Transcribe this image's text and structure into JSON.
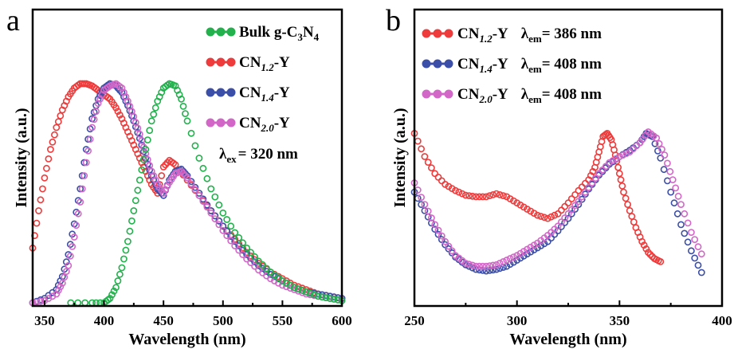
{
  "colors": {
    "green": "#22b14c",
    "red": "#ee3b3b",
    "blue": "#3c4fa8",
    "magenta": "#d267c8"
  },
  "chart_data": [
    {
      "panel": "a",
      "type": "scatter",
      "xlabel": "Wavelength (nm)",
      "ylabel": "Intensity (a.u.)",
      "xlim": [
        340,
        600
      ],
      "ylim": [
        0,
        1.08
      ],
      "xticks": [
        350,
        400,
        450,
        500,
        550,
        600
      ],
      "legend_position": "top-right",
      "annotation": {
        "symbol": "λ",
        "sub": "ex",
        "value": "= 320 nm"
      },
      "series": [
        {
          "name": "Bulk g-C3N4",
          "label_main": "Bulk g-C",
          "label_sub1": "3",
          "label_mid": "N",
          "label_sub2": "4",
          "color": "#22b14c",
          "x": [
            372,
            390,
            400,
            405,
            410,
            415,
            420,
            425,
            430,
            435,
            440,
            445,
            450,
            455,
            460,
            465,
            470,
            480,
            490,
            500,
            510,
            520,
            530,
            540,
            550,
            560,
            570,
            580,
            590,
            600
          ],
          "y": [
            0.0,
            0.0,
            0.0,
            0.02,
            0.07,
            0.16,
            0.28,
            0.42,
            0.56,
            0.7,
            0.83,
            0.92,
            0.98,
            1.0,
            0.99,
            0.93,
            0.83,
            0.66,
            0.52,
            0.41,
            0.32,
            0.25,
            0.19,
            0.14,
            0.1,
            0.07,
            0.05,
            0.03,
            0.02,
            0.01
          ]
        },
        {
          "name": "CN1.2-Y",
          "label_main": "CN",
          "label_sub": "1.2",
          "label_tail": "-Y",
          "color": "#ee3b3b",
          "x": [
            340,
            345,
            350,
            355,
            360,
            365,
            370,
            375,
            380,
            385,
            390,
            395,
            400,
            405,
            410,
            415,
            420,
            425,
            430,
            435,
            440,
            445,
            450,
            455,
            460,
            470,
            480,
            490,
            500,
            510,
            520,
            530,
            540,
            550,
            560,
            570,
            580,
            590,
            600
          ],
          "y": [
            0.25,
            0.42,
            0.57,
            0.7,
            0.8,
            0.88,
            0.94,
            0.98,
            1.0,
            1.0,
            0.99,
            0.97,
            0.95,
            0.93,
            0.89,
            0.84,
            0.78,
            0.72,
            0.66,
            0.6,
            0.54,
            0.5,
            0.62,
            0.65,
            0.63,
            0.56,
            0.49,
            0.42,
            0.35,
            0.29,
            0.23,
            0.18,
            0.14,
            0.11,
            0.08,
            0.06,
            0.04,
            0.03,
            0.02
          ]
        },
        {
          "name": "CN1.4-Y",
          "label_main": "CN",
          "label_sub": "1.4",
          "label_tail": "-Y",
          "color": "#3c4fa8",
          "x": [
            340,
            350,
            360,
            365,
            370,
            375,
            380,
            385,
            390,
            395,
            400,
            405,
            410,
            415,
            420,
            425,
            430,
            435,
            440,
            445,
            450,
            455,
            460,
            465,
            470,
            480,
            490,
            500,
            510,
            520,
            530,
            540,
            550,
            560,
            570,
            580,
            590,
            600
          ],
          "y": [
            0.0,
            0.02,
            0.06,
            0.12,
            0.22,
            0.36,
            0.52,
            0.7,
            0.84,
            0.93,
            0.98,
            1.0,
            0.99,
            0.96,
            0.9,
            0.83,
            0.75,
            0.66,
            0.58,
            0.52,
            0.49,
            0.56,
            0.6,
            0.61,
            0.58,
            0.5,
            0.42,
            0.35,
            0.28,
            0.22,
            0.17,
            0.13,
            0.1,
            0.07,
            0.05,
            0.04,
            0.03,
            0.02
          ]
        },
        {
          "name": "CN2.0-Y",
          "label_main": "CN",
          "label_sub": "2.0",
          "label_tail": "-Y",
          "color": "#d267c8",
          "x": [
            340,
            350,
            360,
            365,
            370,
            375,
            380,
            385,
            390,
            395,
            400,
            405,
            410,
            415,
            420,
            425,
            430,
            435,
            440,
            445,
            450,
            455,
            460,
            465,
            470,
            480,
            490,
            500,
            510,
            520,
            530,
            540,
            550,
            560,
            570,
            580,
            590,
            600
          ],
          "y": [
            0.0,
            0.01,
            0.04,
            0.09,
            0.17,
            0.3,
            0.46,
            0.64,
            0.8,
            0.91,
            0.97,
            0.99,
            1.0,
            0.98,
            0.92,
            0.85,
            0.77,
            0.68,
            0.6,
            0.54,
            0.5,
            0.55,
            0.59,
            0.6,
            0.57,
            0.49,
            0.41,
            0.33,
            0.26,
            0.2,
            0.15,
            0.11,
            0.08,
            0.06,
            0.04,
            0.03,
            0.02,
            0.01
          ]
        }
      ]
    },
    {
      "panel": "b",
      "type": "scatter",
      "xlabel": "Wavelength (nm)",
      "ylabel": "Intensity (a.u.)",
      "xlim": [
        250,
        400
      ],
      "ylim": [
        0,
        1.08
      ],
      "xticks": [
        250,
        300,
        350,
        400
      ],
      "legend_position": "top-left",
      "series": [
        {
          "name": "CN1.2-Y λem = 386 nm",
          "label_main": "CN",
          "label_sub": "1.2",
          "label_tail": "-Y",
          "em_value": "= 386 nm",
          "color": "#ee3b3b",
          "x": [
            250,
            255,
            260,
            265,
            270,
            275,
            280,
            285,
            290,
            295,
            300,
            305,
            310,
            315,
            320,
            325,
            330,
            335,
            338,
            340,
            342,
            344,
            346,
            348,
            350,
            352,
            355,
            358,
            361,
            364,
            367,
            370
          ],
          "y": [
            0.9,
            0.75,
            0.64,
            0.57,
            0.53,
            0.5,
            0.49,
            0.49,
            0.51,
            0.49,
            0.45,
            0.41,
            0.37,
            0.35,
            0.38,
            0.45,
            0.53,
            0.6,
            0.68,
            0.78,
            0.88,
            0.9,
            0.86,
            0.76,
            0.64,
            0.52,
            0.4,
            0.29,
            0.2,
            0.13,
            0.09,
            0.07
          ]
        },
        {
          "name": "CN1.4-Y λem = 408 nm",
          "label_main": "CN",
          "label_sub": "1.4",
          "label_tail": "-Y",
          "em_value": "= 408 nm",
          "color": "#3c4fa8",
          "x": [
            250,
            255,
            260,
            265,
            270,
            275,
            280,
            285,
            290,
            295,
            300,
            305,
            310,
            315,
            320,
            325,
            330,
            335,
            340,
            345,
            350,
            355,
            360,
            363,
            366,
            370,
            375,
            380,
            385,
            390
          ],
          "y": [
            0.52,
            0.4,
            0.28,
            0.18,
            0.1,
            0.05,
            0.02,
            0.01,
            0.02,
            0.04,
            0.08,
            0.12,
            0.16,
            0.2,
            0.27,
            0.35,
            0.44,
            0.54,
            0.63,
            0.7,
            0.75,
            0.79,
            0.84,
            0.9,
            0.88,
            0.74,
            0.52,
            0.31,
            0.14,
            0.0
          ]
        },
        {
          "name": "CN2.0-Y λem = 408 nm",
          "label_main": "CN",
          "label_sub": "2.0",
          "label_tail": "-Y",
          "em_value": "= 408 nm",
          "color": "#d267c8",
          "x": [
            250,
            255,
            260,
            265,
            270,
            275,
            280,
            285,
            290,
            295,
            300,
            305,
            310,
            315,
            320,
            325,
            330,
            335,
            340,
            345,
            350,
            355,
            360,
            364,
            368,
            372,
            376,
            380,
            385,
            390
          ],
          "y": [
            0.58,
            0.44,
            0.31,
            0.2,
            0.11,
            0.06,
            0.04,
            0.04,
            0.05,
            0.08,
            0.11,
            0.15,
            0.19,
            0.24,
            0.3,
            0.38,
            0.46,
            0.55,
            0.64,
            0.71,
            0.75,
            0.78,
            0.84,
            0.91,
            0.87,
            0.76,
            0.6,
            0.44,
            0.26,
            0.12
          ]
        }
      ]
    }
  ]
}
